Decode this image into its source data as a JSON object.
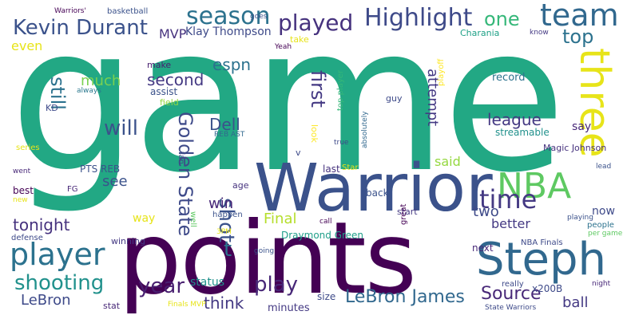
{
  "words": [
    {
      "text": "game",
      "color": "#22a884"
    },
    {
      "text": "points",
      "color": "#440154"
    },
    {
      "text": "Warrior",
      "color": "#3b528b"
    },
    {
      "text": "Steph",
      "color": "#31688e"
    },
    {
      "text": "three",
      "color": "#e7e419"
    },
    {
      "text": "NBA",
      "color": "#5ec962"
    },
    {
      "text": "player",
      "color": "#2c728e"
    },
    {
      "text": "team",
      "color": "#31688e"
    },
    {
      "text": "Highlight",
      "color": "#3e4a89"
    },
    {
      "text": "time",
      "color": "#443983"
    },
    {
      "text": "season",
      "color": "#2c728e"
    },
    {
      "text": "Kevin Durant",
      "color": "#3b528b"
    },
    {
      "text": "played",
      "color": "#46327e"
    },
    {
      "text": "one",
      "color": "#35b779"
    },
    {
      "text": "top",
      "color": "#2c728e"
    },
    {
      "text": "shooting",
      "color": "#21918c"
    },
    {
      "text": "year",
      "color": "#481f70"
    },
    {
      "text": "play",
      "color": "#482878"
    },
    {
      "text": "Golden State",
      "color": "#3e4a89"
    },
    {
      "text": "shot",
      "color": "#3b528b"
    },
    {
      "text": "first",
      "color": "#443983"
    },
    {
      "text": "attempt",
      "color": "#443983"
    },
    {
      "text": "still",
      "color": "#2c728e"
    },
    {
      "text": "will",
      "color": "#3b528b"
    },
    {
      "text": "second",
      "color": "#443983"
    },
    {
      "text": "Dell",
      "color": "#3b528b"
    },
    {
      "text": "league",
      "color": "#443983"
    },
    {
      "text": "Source",
      "color": "#482878"
    },
    {
      "text": "LeBron James",
      "color": "#31688e"
    },
    {
      "text": "LeBron",
      "color": "#3e4a89"
    },
    {
      "text": "tonight",
      "color": "#46327e"
    },
    {
      "text": "think",
      "color": "#443983"
    },
    {
      "text": "MVP",
      "color": "#46327e"
    },
    {
      "text": "Klay Thompson",
      "color": "#3e4a89"
    },
    {
      "text": "even",
      "color": "#e7e419"
    },
    {
      "text": "much",
      "color": "#7ad151"
    },
    {
      "text": "espn",
      "color": "#2c728e"
    },
    {
      "text": "see",
      "color": "#3b528b"
    },
    {
      "text": "win",
      "color": "#482878"
    },
    {
      "text": "t",
      "color": "#2c728e"
    },
    {
      "text": "Final",
      "color": "#b5de2b"
    },
    {
      "text": "two",
      "color": "#3e4a89"
    },
    {
      "text": "better",
      "color": "#443983"
    },
    {
      "text": "now",
      "color": "#3e4a89"
    },
    {
      "text": "ball",
      "color": "#443983"
    },
    {
      "text": "said",
      "color": "#95d840"
    },
    {
      "text": "status",
      "color": "#21918c"
    },
    {
      "text": "Draymond Green",
      "color": "#1f9e89"
    },
    {
      "text": "x200B",
      "color": "#3e4a89"
    },
    {
      "text": "Warriors'",
      "color": "#440154"
    },
    {
      "text": "basketball",
      "color": "#3b528b"
    },
    {
      "text": "goes",
      "color": "#3b528b"
    },
    {
      "text": "Charania",
      "color": "#1fa187"
    },
    {
      "text": "know",
      "color": "#443983"
    },
    {
      "text": "playoff",
      "color": "#fde725"
    },
    {
      "text": "take",
      "color": "#e7e419"
    },
    {
      "text": "Yeah",
      "color": "#440154"
    },
    {
      "text": "make",
      "color": "#481f70"
    },
    {
      "text": "top player",
      "color": "#35b779"
    },
    {
      "text": "record",
      "color": "#2c728e"
    },
    {
      "text": "always",
      "color": "#2a788e"
    },
    {
      "text": "assist",
      "color": "#3b528b"
    },
    {
      "text": "field",
      "color": "#95d840"
    },
    {
      "text": "KD",
      "color": "#3e4a89"
    },
    {
      "text": "guy",
      "color": "#3e4a89"
    },
    {
      "text": "absolutely",
      "color": "#31688e"
    },
    {
      "text": "streamable",
      "color": "#21918c"
    },
    {
      "text": "say",
      "color": "#482878"
    },
    {
      "text": "look",
      "color": "#fde725"
    },
    {
      "text": "REB AST",
      "color": "#31688e"
    },
    {
      "text": "true",
      "color": "#3e4a89"
    },
    {
      "text": "Magic Johnson",
      "color": "#46327e"
    },
    {
      "text": "series",
      "color": "#e7e419"
    },
    {
      "text": "v",
      "color": "#3e4a89"
    },
    {
      "text": "fan",
      "color": "#3e4a89"
    },
    {
      "text": "went",
      "color": "#482878"
    },
    {
      "text": "PTS REB",
      "color": "#3b528b"
    },
    {
      "text": "last",
      "color": "#46327e"
    },
    {
      "text": "Star",
      "color": "#e7e419"
    },
    {
      "text": "lead",
      "color": "#3b528b"
    },
    {
      "text": "age",
      "color": "#46327e"
    },
    {
      "text": "best",
      "color": "#440154"
    },
    {
      "text": "FG",
      "color": "#482878"
    },
    {
      "text": "back",
      "color": "#3b528b"
    },
    {
      "text": "new",
      "color": "#e7e419"
    },
    {
      "text": "way",
      "color": "#e7e419"
    },
    {
      "text": "well",
      "color": "#5ec962"
    },
    {
      "text": "happen",
      "color": "#3b528b"
    },
    {
      "text": "call",
      "color": "#440154"
    },
    {
      "text": "start",
      "color": "#443983"
    },
    {
      "text": "playing",
      "color": "#3b528b"
    },
    {
      "text": "people",
      "color": "#2c728e"
    },
    {
      "text": "per game",
      "color": "#5ec962"
    },
    {
      "text": "defense",
      "color": "#3e4a89"
    },
    {
      "text": "3PM",
      "color": "#e7e419"
    },
    {
      "text": "great",
      "color": "#440154"
    },
    {
      "text": "next",
      "color": "#482878"
    },
    {
      "text": "winning",
      "color": "#443983"
    },
    {
      "text": "going",
      "color": "#3b528b"
    },
    {
      "text": "NBA Finals",
      "color": "#3e4a89"
    },
    {
      "text": "minutes",
      "color": "#443983"
    },
    {
      "text": "size",
      "color": "#3e4a89"
    },
    {
      "text": "really",
      "color": "#3e4a89"
    },
    {
      "text": "night",
      "color": "#482878"
    },
    {
      "text": "stat",
      "color": "#482878"
    },
    {
      "text": "Finals MVP",
      "color": "#e7e419"
    },
    {
      "text": "State Warriors",
      "color": "#3e4a89"
    }
  ]
}
